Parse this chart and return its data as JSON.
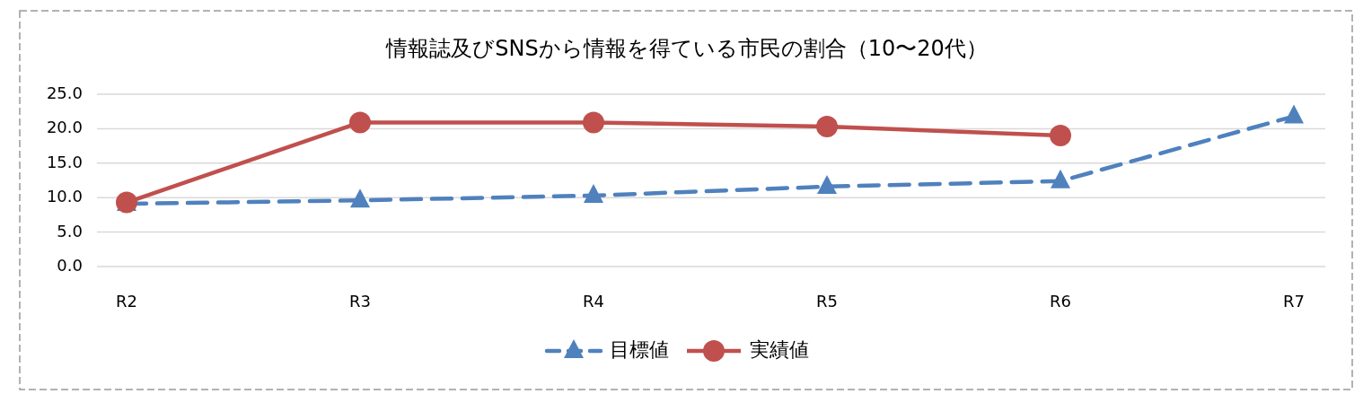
{
  "chart_data": {
    "type": "line",
    "title": "情報誌及びSNSから情報を得ている市民の割合（10〜20代）",
    "categories": [
      "R2",
      "R3",
      "R4",
      "R5",
      "R6",
      "R7"
    ],
    "series": [
      {
        "name": "目標値",
        "color": "#4f81bd",
        "marker": "triangle",
        "line_style": "dashed",
        "values": [
          9.1,
          9.6,
          10.3,
          11.6,
          12.4,
          21.8
        ]
      },
      {
        "name": "実績値",
        "color": "#c0504d",
        "marker": "circle",
        "line_style": "solid",
        "values": [
          9.3,
          20.9,
          20.9,
          20.3,
          19.0,
          null
        ]
      }
    ],
    "ylim": [
      0,
      25
    ],
    "yticks": [
      {
        "value": 0,
        "label": "0.0"
      },
      {
        "value": 5,
        "label": "5.0"
      },
      {
        "value": 10,
        "label": "10.0"
      },
      {
        "value": 15,
        "label": "15.0"
      },
      {
        "value": 20,
        "label": "20.0"
      },
      {
        "value": 25,
        "label": "25.0"
      }
    ],
    "grid": "y",
    "legend": "bottom"
  }
}
